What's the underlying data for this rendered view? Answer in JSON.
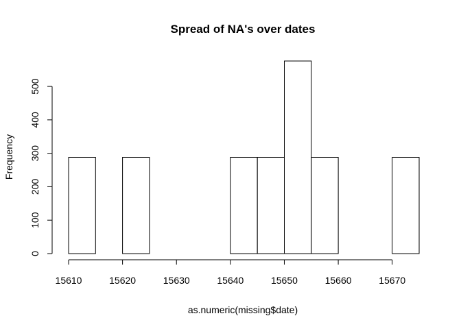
{
  "chart_data": {
    "type": "bar",
    "title": "Spread of NA's over dates",
    "xlabel": "as.numeric(missing$date)",
    "ylabel": "Frequency",
    "bins": [
      {
        "start": 15610,
        "end": 15615,
        "value": 288
      },
      {
        "start": 15615,
        "end": 15620,
        "value": 0
      },
      {
        "start": 15620,
        "end": 15625,
        "value": 288
      },
      {
        "start": 15625,
        "end": 15630,
        "value": 0
      },
      {
        "start": 15630,
        "end": 15635,
        "value": 0
      },
      {
        "start": 15635,
        "end": 15640,
        "value": 0
      },
      {
        "start": 15640,
        "end": 15645,
        "value": 288
      },
      {
        "start": 15645,
        "end": 15650,
        "value": 288
      },
      {
        "start": 15650,
        "end": 15655,
        "value": 576
      },
      {
        "start": 15655,
        "end": 15660,
        "value": 288
      },
      {
        "start": 15660,
        "end": 15665,
        "value": 0
      },
      {
        "start": 15665,
        "end": 15670,
        "value": 0
      },
      {
        "start": 15670,
        "end": 15675,
        "value": 288
      }
    ],
    "xticks": [
      15610,
      15620,
      15630,
      15640,
      15650,
      15660,
      15670
    ],
    "yticks": [
      0,
      100,
      200,
      300,
      400,
      500
    ],
    "xlim": [
      15610,
      15675
    ],
    "ylim": [
      0,
      576
    ],
    "grid": false,
    "legend": "none"
  }
}
